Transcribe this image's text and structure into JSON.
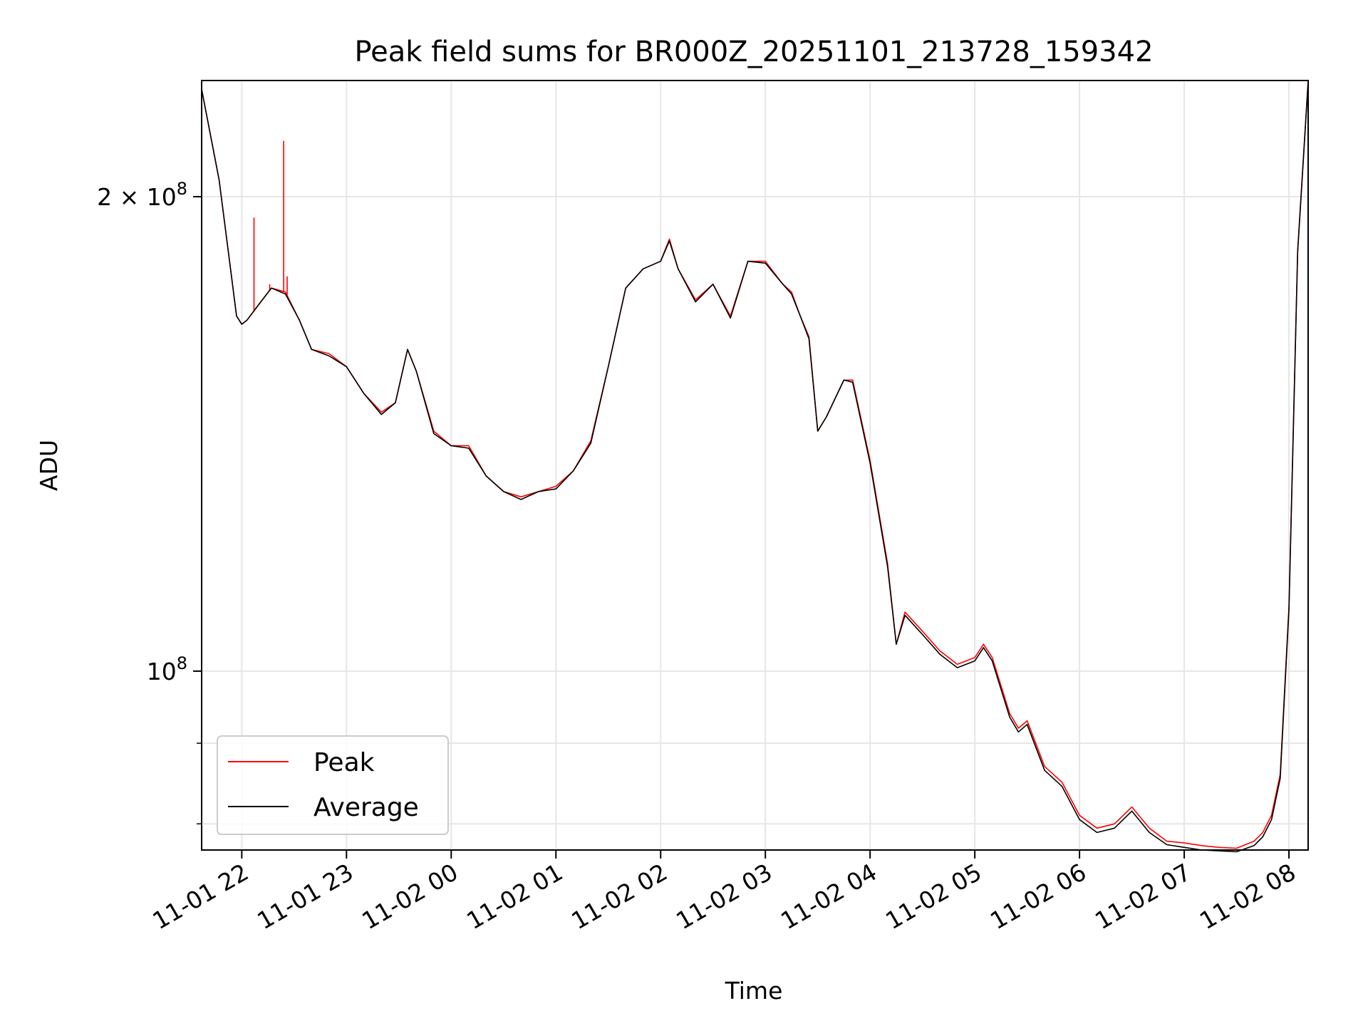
{
  "chart_data": {
    "type": "line",
    "title": "Peak field sums for BR000Z_20251101_213728_159342",
    "xlabel": "Time",
    "ylabel": "ADU",
    "y_scale": "log",
    "xlim": [
      "2025-11-01 21:37",
      "2025-11-02 08:11"
    ],
    "ylim": [
      77000000,
      237000000
    ],
    "x_ticks": [
      "11-01 22",
      "11-01 23",
      "11-02 00",
      "11-02 01",
      "11-02 02",
      "11-02 03",
      "11-02 04",
      "11-02 05",
      "11-02 06",
      "11-02 07",
      "11-02 08"
    ],
    "y_major_ticks": [
      {
        "value": 100000000,
        "base": "10",
        "exp": "8",
        "prefix": ""
      },
      {
        "value": 200000000,
        "base": "10",
        "exp": "8",
        "prefix": "2 × "
      }
    ],
    "y_minor_ticks": [
      80000000,
      90000000
    ],
    "grid": true,
    "legend_position": "lower left",
    "series": [
      {
        "name": "Peak",
        "color": "#ff0000",
        "x": [
          "2025-11-01 21:37",
          "2025-11-01 21:47",
          "2025-11-01 21:53",
          "2025-11-01 21:57",
          "2025-11-01 22:00",
          "2025-11-01 22:03",
          "2025-11-01 22:10",
          "2025-11-01 22:17",
          "2025-11-01 22:25",
          "2025-11-01 22:33",
          "2025-11-01 22:40",
          "2025-11-01 22:50",
          "2025-11-01 23:00",
          "2025-11-01 23:10",
          "2025-11-01 23:20",
          "2025-11-01 23:28",
          "2025-11-01 23:35",
          "2025-11-01 23:40",
          "2025-11-01 23:50",
          "2025-11-02 00:00",
          "2025-11-02 00:10",
          "2025-11-02 00:20",
          "2025-11-02 00:30",
          "2025-11-02 00:40",
          "2025-11-02 00:50",
          "2025-11-02 01:00",
          "2025-11-02 01:10",
          "2025-11-02 01:20",
          "2025-11-02 01:30",
          "2025-11-02 01:40",
          "2025-11-02 01:50",
          "2025-11-02 02:00",
          "2025-11-02 02:05",
          "2025-11-02 02:10",
          "2025-11-02 02:20",
          "2025-11-02 02:30",
          "2025-11-02 02:40",
          "2025-11-02 02:50",
          "2025-11-02 03:00",
          "2025-11-02 03:10",
          "2025-11-02 03:15",
          "2025-11-02 03:20",
          "2025-11-02 03:25",
          "2025-11-02 03:30",
          "2025-11-02 03:35",
          "2025-11-02 03:45",
          "2025-11-02 03:50",
          "2025-11-02 04:00",
          "2025-11-02 04:10",
          "2025-11-02 04:15",
          "2025-11-02 04:20",
          "2025-11-02 04:30",
          "2025-11-02 04:40",
          "2025-11-02 04:50",
          "2025-11-02 05:00",
          "2025-11-02 05:05",
          "2025-11-02 05:10",
          "2025-11-02 05:20",
          "2025-11-02 05:25",
          "2025-11-02 05:30",
          "2025-11-02 05:40",
          "2025-11-02 05:50",
          "2025-11-02 06:00",
          "2025-11-02 06:10",
          "2025-11-02 06:20",
          "2025-11-02 06:30",
          "2025-11-02 06:40",
          "2025-11-02 06:50",
          "2025-11-02 07:00",
          "2025-11-02 07:10",
          "2025-11-02 07:20",
          "2025-11-02 07:30",
          "2025-11-02 07:40",
          "2025-11-02 07:45",
          "2025-11-02 07:50",
          "2025-11-02 07:55",
          "2025-11-02 08:00",
          "2025-11-02 08:05",
          "2025-11-02 08:11"
        ],
        "values": [
          234000000,
          205000000,
          182000000,
          168000000,
          166000000,
          167000000,
          171000000,
          175000000,
          174000000,
          167000000,
          160000000,
          159000000,
          156000000,
          150000000,
          146000000,
          148000000,
          160000000,
          155000000,
          142000000,
          139000000,
          139000000,
          133000000,
          130000000,
          129000000,
          130000000,
          131000000,
          134000000,
          140000000,
          156000000,
          175000000,
          180000000,
          182000000,
          188000000,
          180000000,
          172000000,
          176000000,
          168000000,
          182000000,
          182000000,
          176000000,
          174000000,
          168000000,
          163000000,
          142000000,
          145000000,
          153000000,
          153000000,
          136000000,
          117000000,
          104000000,
          109000000,
          106000000,
          103000000,
          101000000,
          102000000,
          104000000,
          102000000,
          94000000,
          92000000,
          93000000,
          87000000,
          85000000,
          81000000,
          79500000,
          80000000,
          82000000,
          79500000,
          78000000,
          77800000,
          77500000,
          77300000,
          77200000,
          78000000,
          79000000,
          81000000,
          86000000,
          110000000,
          185000000,
          237000000
        ],
        "spikes": [
          {
            "x": "2025-11-01 22:07",
            "value": 194000000
          },
          {
            "x": "2025-11-01 22:24",
            "value": 217000000
          },
          {
            "x": "2025-11-01 22:26",
            "value": 178000000
          },
          {
            "x": "2025-11-01 22:16",
            "value": 176000000
          }
        ]
      },
      {
        "name": "Average",
        "color": "#000000",
        "x": [
          "2025-11-01 21:37",
          "2025-11-01 21:47",
          "2025-11-01 21:53",
          "2025-11-01 21:57",
          "2025-11-01 22:00",
          "2025-11-01 22:03",
          "2025-11-01 22:10",
          "2025-11-01 22:17",
          "2025-11-01 22:25",
          "2025-11-01 22:33",
          "2025-11-01 22:40",
          "2025-11-01 22:50",
          "2025-11-01 23:00",
          "2025-11-01 23:10",
          "2025-11-01 23:20",
          "2025-11-01 23:28",
          "2025-11-01 23:35",
          "2025-11-01 23:40",
          "2025-11-01 23:50",
          "2025-11-02 00:00",
          "2025-11-02 00:10",
          "2025-11-02 00:20",
          "2025-11-02 00:30",
          "2025-11-02 00:40",
          "2025-11-02 00:50",
          "2025-11-02 01:00",
          "2025-11-02 01:10",
          "2025-11-02 01:20",
          "2025-11-02 01:30",
          "2025-11-02 01:40",
          "2025-11-02 01:50",
          "2025-11-02 02:00",
          "2025-11-02 02:05",
          "2025-11-02 02:10",
          "2025-11-02 02:20",
          "2025-11-02 02:30",
          "2025-11-02 02:40",
          "2025-11-02 02:50",
          "2025-11-02 03:00",
          "2025-11-02 03:10",
          "2025-11-02 03:15",
          "2025-11-02 03:20",
          "2025-11-02 03:25",
          "2025-11-02 03:30",
          "2025-11-02 03:35",
          "2025-11-02 03:45",
          "2025-11-02 03:50",
          "2025-11-02 04:00",
          "2025-11-02 04:10",
          "2025-11-02 04:15",
          "2025-11-02 04:20",
          "2025-11-02 04:30",
          "2025-11-02 04:40",
          "2025-11-02 04:50",
          "2025-11-02 05:00",
          "2025-11-02 05:05",
          "2025-11-02 05:10",
          "2025-11-02 05:20",
          "2025-11-02 05:25",
          "2025-11-02 05:30",
          "2025-11-02 05:40",
          "2025-11-02 05:50",
          "2025-11-02 06:00",
          "2025-11-02 06:10",
          "2025-11-02 06:20",
          "2025-11-02 06:30",
          "2025-11-02 06:40",
          "2025-11-02 06:50",
          "2025-11-02 07:00",
          "2025-11-02 07:10",
          "2025-11-02 07:20",
          "2025-11-02 07:30",
          "2025-11-02 07:40",
          "2025-11-02 07:45",
          "2025-11-02 07:50",
          "2025-11-02 07:55",
          "2025-11-02 08:00",
          "2025-11-02 08:05",
          "2025-11-02 08:11"
        ],
        "values": [
          234000000,
          205000000,
          182000000,
          168000000,
          166000000,
          167000000,
          171000000,
          175000000,
          173500000,
          167000000,
          160000000,
          158500000,
          156000000,
          150000000,
          145500000,
          148000000,
          160000000,
          155000000,
          141500000,
          139000000,
          138500000,
          133000000,
          130000000,
          128500000,
          130000000,
          130500000,
          134000000,
          139500000,
          156000000,
          175000000,
          180000000,
          182000000,
          187500000,
          180000000,
          171500000,
          176000000,
          167500000,
          182000000,
          181500000,
          176000000,
          173500000,
          168000000,
          162500000,
          142000000,
          145000000,
          153000000,
          152500000,
          135500000,
          116500000,
          104000000,
          108500000,
          105500000,
          102500000,
          100500000,
          101500000,
          103500000,
          101500000,
          93500000,
          91500000,
          92500000,
          86500000,
          84500000,
          80500000,
          79000000,
          79500000,
          81500000,
          79000000,
          77600000,
          77300000,
          77000000,
          76900000,
          76800000,
          77500000,
          78500000,
          80500000,
          85500000,
          109500000,
          184500000,
          236500000
        ]
      }
    ]
  }
}
